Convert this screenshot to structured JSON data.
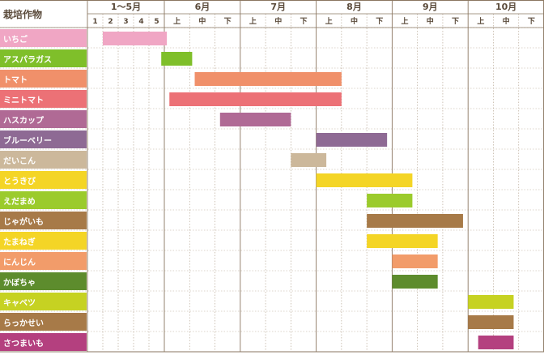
{
  "header": {
    "title": "栽培作物"
  },
  "chart_data": {
    "type": "gantt",
    "months": [
      {
        "label": "1〜5月",
        "subs": [
          "1",
          "2",
          "3",
          "4",
          "5"
        ]
      },
      {
        "label": "6月",
        "subs": [
          "上",
          "中",
          "下"
        ]
      },
      {
        "label": "7月",
        "subs": [
          "上",
          "中",
          "下"
        ]
      },
      {
        "label": "8月",
        "subs": [
          "上",
          "中",
          "下"
        ]
      },
      {
        "label": "9月",
        "subs": [
          "上",
          "中",
          "下"
        ]
      },
      {
        "label": "10月",
        "subs": [
          "上",
          "中",
          "下"
        ]
      }
    ],
    "rows": [
      {
        "name": "いちご",
        "color": "#f0a6c4",
        "start": 1.0,
        "end": 5.1
      },
      {
        "name": "アスパラガス",
        "color": "#7fbf2a",
        "start": 4.8,
        "end": 6.1
      },
      {
        "name": "トマト",
        "color": "#f0906a",
        "start": 6.2,
        "end": 12.0
      },
      {
        "name": "ミニトマト",
        "color": "#ec7176",
        "start": 5.2,
        "end": 12.0
      },
      {
        "name": "ハスカップ",
        "color": "#b06a95",
        "start": 7.2,
        "end": 10.0
      },
      {
        "name": "ブルーベリー",
        "color": "#8e6a94",
        "start": 11.0,
        "end": 13.8
      },
      {
        "name": "だいこん",
        "color": "#ccb89b",
        "start": 10.0,
        "end": 11.4
      },
      {
        "name": "とうきび",
        "color": "#f4d526",
        "start": 11.0,
        "end": 14.8
      },
      {
        "name": "えだまめ",
        "color": "#9bcb2c",
        "start": 13.0,
        "end": 14.8
      },
      {
        "name": "じゃがいも",
        "color": "#a77a48",
        "start": 13.0,
        "end": 16.8
      },
      {
        "name": "たまねぎ",
        "color": "#f4d526",
        "start": 13.0,
        "end": 15.8
      },
      {
        "name": "にんじん",
        "color": "#f29c6a",
        "start": 14.0,
        "end": 15.8
      },
      {
        "name": "かぼちゃ",
        "color": "#5d8c2d",
        "start": 14.0,
        "end": 15.8
      },
      {
        "name": "キャベツ",
        "color": "#c6d222",
        "start": 17.0,
        "end": 18.8
      },
      {
        "name": "らっかせい",
        "color": "#a77a48",
        "start": 17.0,
        "end": 18.8
      },
      {
        "name": "さつまいも",
        "color": "#b4407f",
        "start": 17.4,
        "end": 18.8
      }
    ]
  }
}
